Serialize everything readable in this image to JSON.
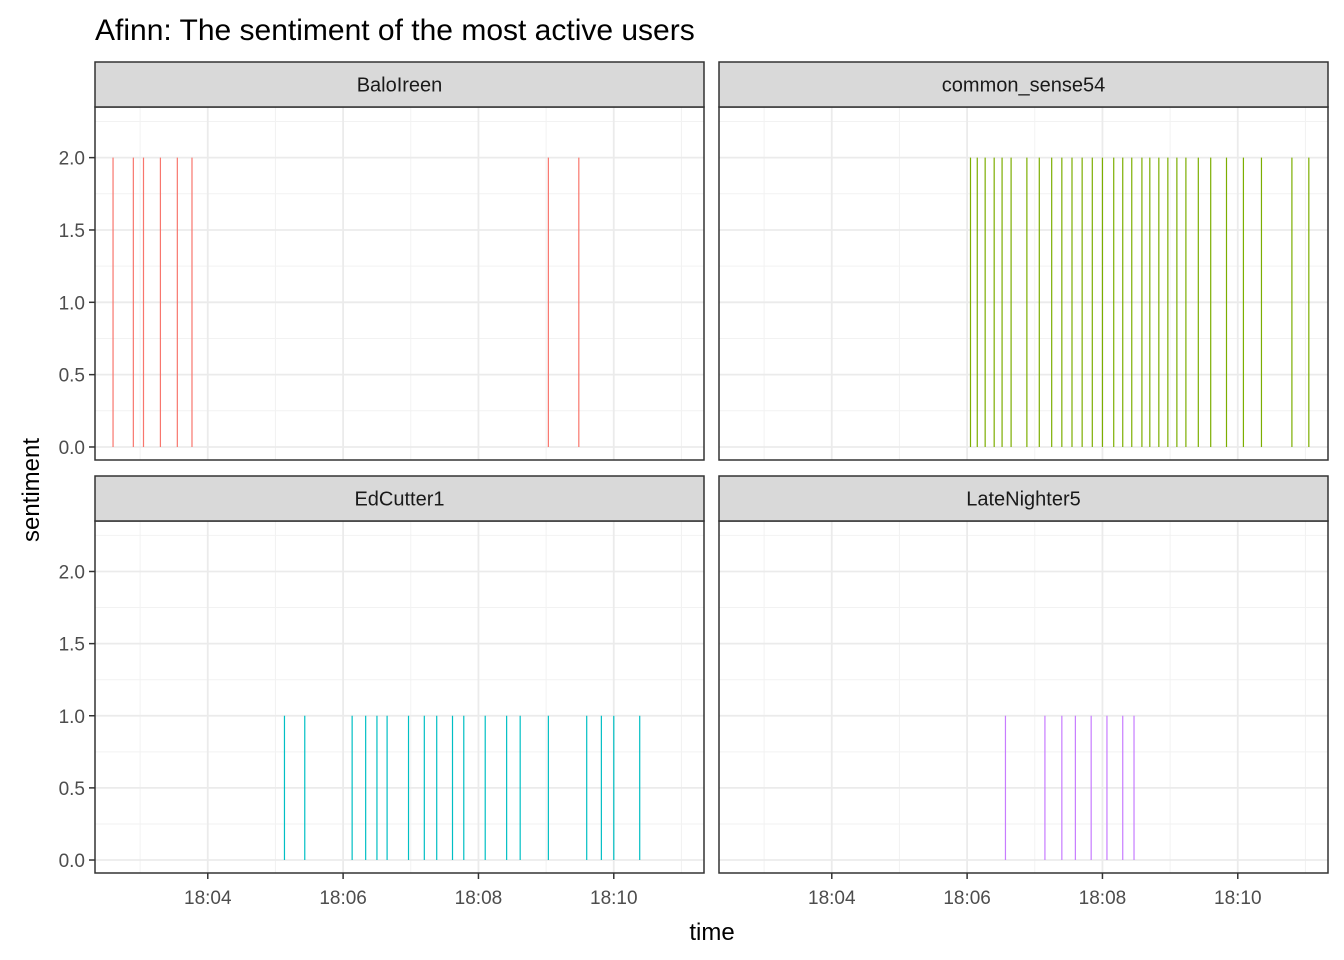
{
  "chart_data": {
    "type": "bar",
    "title": "Afinn: The sentiment of the most active users",
    "xlabel": "time",
    "ylabel": "sentiment",
    "xlim": [
      "18:02:20",
      "18:11:20"
    ],
    "ylim": [
      -0.09,
      2.35
    ],
    "x_ticks": [
      "18:04",
      "18:06",
      "18:08",
      "18:10"
    ],
    "y_ticks": [
      "0.0",
      "0.5",
      "1.0",
      "1.5",
      "2.0"
    ],
    "grid": true,
    "legend": "none",
    "facet_layout": "2x2",
    "panels": [
      {
        "name": "BaloIreen",
        "color": "#F8766D",
        "sentiment": 2,
        "times": [
          "18:02:36",
          "18:02:54",
          "18:03:03",
          "18:03:18",
          "18:03:33",
          "18:03:46",
          "18:09:02",
          "18:09:29"
        ]
      },
      {
        "name": "common_sense54",
        "color": "#7CAE00",
        "sentiment": 2,
        "times": [
          "18:06:03",
          "18:06:09",
          "18:06:16",
          "18:06:24",
          "18:06:31",
          "18:06:39",
          "18:06:53",
          "18:07:04",
          "18:07:15",
          "18:07:24",
          "18:07:33",
          "18:07:42",
          "18:07:51",
          "18:08:00",
          "18:08:10",
          "18:08:18",
          "18:08:26",
          "18:08:35",
          "18:08:42",
          "18:08:50",
          "18:08:58",
          "18:09:06",
          "18:09:14",
          "18:09:25",
          "18:09:36",
          "18:09:50",
          "18:10:05",
          "18:10:21",
          "18:10:48",
          "18:11:03"
        ]
      },
      {
        "name": "EdCutter1",
        "color": "#00BFC4",
        "sentiment": 1,
        "times": [
          "18:05:08",
          "18:05:26",
          "18:06:08",
          "18:06:20",
          "18:06:30",
          "18:06:39",
          "18:06:58",
          "18:07:12",
          "18:07:23",
          "18:07:37",
          "18:07:47",
          "18:08:06",
          "18:08:25",
          "18:08:37",
          "18:09:02",
          "18:09:36",
          "18:09:49",
          "18:10:00",
          "18:10:23"
        ]
      },
      {
        "name": "LateNighter5",
        "color": "#C77CFF",
        "sentiment": 1,
        "times": [
          "18:06:34",
          "18:07:09",
          "18:07:24",
          "18:07:36",
          "18:07:50",
          "18:08:04",
          "18:08:18",
          "18:08:28"
        ]
      }
    ]
  }
}
